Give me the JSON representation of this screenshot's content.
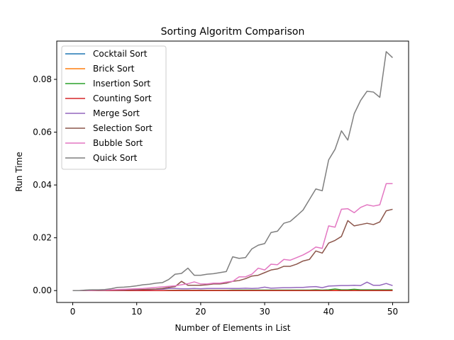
{
  "chart_data": {
    "type": "line",
    "title": "Sorting Algoritm Comparison",
    "xlabel": "Number of Elements in List",
    "ylabel": "Run Time",
    "xlim": [
      -2.5,
      52.5
    ],
    "ylim": [
      -0.0045,
      0.0945
    ],
    "xticks": [
      0,
      10,
      20,
      30,
      40,
      50
    ],
    "yticks": [
      0.0,
      0.02,
      0.04,
      0.06,
      0.08
    ],
    "ytick_labels": [
      "0.00",
      "0.02",
      "0.04",
      "0.06",
      "0.08"
    ],
    "grid": false,
    "legend_position": "top-left",
    "x": [
      0,
      1,
      2,
      3,
      4,
      5,
      6,
      7,
      8,
      9,
      10,
      11,
      12,
      13,
      14,
      15,
      16,
      17,
      18,
      19,
      20,
      21,
      22,
      23,
      24,
      25,
      26,
      27,
      28,
      29,
      30,
      31,
      32,
      33,
      34,
      35,
      36,
      37,
      38,
      39,
      40,
      41,
      42,
      43,
      44,
      45,
      46,
      47,
      48,
      49,
      50
    ],
    "series": [
      {
        "name": "Cocktail Sort",
        "color": "#1f77b4",
        "values": [
          0,
          0,
          0,
          0,
          0,
          0,
          0,
          0,
          0,
          0,
          0,
          0,
          0,
          0,
          0,
          0,
          0,
          0,
          0,
          0,
          0,
          0,
          0,
          0,
          0,
          0,
          0,
          0,
          0,
          0,
          0,
          0,
          0,
          0,
          0,
          0,
          0,
          0,
          0,
          0,
          0,
          0,
          0,
          0,
          0,
          0,
          0,
          0,
          0,
          0,
          0
        ]
      },
      {
        "name": "Brick Sort",
        "color": "#ff7f0e",
        "values": [
          0,
          0,
          0,
          0,
          0,
          0,
          0,
          0,
          0,
          0,
          0,
          0,
          0,
          0,
          0,
          0,
          0.0001,
          0.0001,
          0.0001,
          0.0001,
          0.0001,
          0.0001,
          0.0001,
          0.0001,
          0.0001,
          0.0001,
          0.0001,
          0.0001,
          0.0001,
          0.0001,
          0.0001,
          0.0001,
          0.0001,
          0.0001,
          0.0001,
          0.0001,
          0.0001,
          0.0001,
          0.0001,
          0.0001,
          0.0001,
          0.0001,
          0.0001,
          0.0001,
          0.0001,
          0.0001,
          0.0001,
          0.0001,
          0.0001,
          0.0002,
          0.0001
        ]
      },
      {
        "name": "Insertion Sort",
        "color": "#2ca02c",
        "values": [
          0,
          0,
          0,
          0,
          0,
          0,
          0,
          0,
          0,
          0,
          0,
          0,
          0,
          0,
          0,
          0.0001,
          0.0001,
          0.0001,
          0.0001,
          0.0001,
          0.0001,
          0.0001,
          0.0001,
          0.0001,
          0.0001,
          0.0002,
          0.0002,
          0.0002,
          0.0002,
          0.0002,
          0.0002,
          0.0002,
          0.0002,
          0.0002,
          0.0002,
          0.0002,
          0.0002,
          0.0002,
          0.0003,
          0.0002,
          0.0003,
          0.0006,
          0.0003,
          0.0003,
          0.0005,
          0.0003,
          0.0003,
          0.0003,
          0.0003,
          0.0003,
          0.0003
        ]
      },
      {
        "name": "Counting Sort",
        "color": "#d62728",
        "values": [
          0,
          0,
          0,
          0,
          0,
          0,
          0,
          0,
          0,
          0,
          0,
          0,
          0,
          0,
          0,
          0,
          0,
          0,
          0,
          0,
          0,
          0,
          0,
          0,
          0,
          0,
          0,
          0,
          0,
          0,
          0,
          0,
          0,
          0,
          0,
          0,
          0,
          0,
          0,
          0,
          0,
          0,
          0,
          0,
          0,
          0,
          0,
          0,
          0,
          0,
          0
        ]
      },
      {
        "name": "Merge Sort",
        "color": "#9467bd",
        "values": [
          0,
          0,
          0,
          0.0001,
          0.0001,
          0.0001,
          0.0002,
          0.0002,
          0.0002,
          0.0003,
          0.0003,
          0.0004,
          0.0004,
          0.0005,
          0.0005,
          0.0008,
          0.0008,
          0.0007,
          0.0007,
          0.0008,
          0.0007,
          0.0008,
          0.0008,
          0.0008,
          0.0008,
          0.0008,
          0.0008,
          0.0009,
          0.0008,
          0.0009,
          0.0013,
          0.0009,
          0.001,
          0.0011,
          0.0011,
          0.0012,
          0.0012,
          0.0014,
          0.0015,
          0.0011,
          0.0017,
          0.0018,
          0.0019,
          0.0019,
          0.002,
          0.0019,
          0.0032,
          0.002,
          0.002,
          0.0027,
          0.0019
        ]
      },
      {
        "name": "Selection Sort",
        "color": "#8c564b",
        "values": [
          0,
          0,
          0,
          0.0001,
          0.0001,
          0.0001,
          0.0002,
          0.0002,
          0.0003,
          0.0003,
          0.0004,
          0.0004,
          0.0005,
          0.0006,
          0.0008,
          0.0012,
          0.0015,
          0.0035,
          0.002,
          0.002,
          0.002,
          0.0022,
          0.0025,
          0.0025,
          0.0028,
          0.0035,
          0.0038,
          0.0045,
          0.0055,
          0.0058,
          0.0068,
          0.0078,
          0.0082,
          0.0092,
          0.0092,
          0.01,
          0.0112,
          0.0118,
          0.015,
          0.0142,
          0.018,
          0.019,
          0.0205,
          0.0265,
          0.0245,
          0.025,
          0.0255,
          0.025,
          0.026,
          0.0302,
          0.0308
        ]
      },
      {
        "name": "Bubble Sort",
        "color": "#e377c2",
        "values": [
          0,
          0,
          0.0001,
          0.0001,
          0.0002,
          0.0002,
          0.0003,
          0.0004,
          0.0005,
          0.0006,
          0.0007,
          0.0008,
          0.001,
          0.0012,
          0.0014,
          0.0016,
          0.0018,
          0.0022,
          0.0026,
          0.0033,
          0.0025,
          0.0025,
          0.0028,
          0.0028,
          0.0032,
          0.0035,
          0.0052,
          0.0052,
          0.0062,
          0.0085,
          0.0078,
          0.01,
          0.0098,
          0.0118,
          0.0115,
          0.0125,
          0.0135,
          0.0148,
          0.0165,
          0.016,
          0.0245,
          0.024,
          0.0308,
          0.031,
          0.0295,
          0.0315,
          0.0325,
          0.032,
          0.0325,
          0.0405,
          0.0405
        ]
      },
      {
        "name": "Quick Sort",
        "color": "#7f7f7f",
        "values": [
          0,
          0,
          0.0002,
          0.0003,
          0.0003,
          0.0004,
          0.0007,
          0.0012,
          0.0013,
          0.0015,
          0.0018,
          0.0022,
          0.0024,
          0.0028,
          0.003,
          0.0042,
          0.0062,
          0.0065,
          0.0085,
          0.0058,
          0.0058,
          0.0062,
          0.0064,
          0.0068,
          0.0072,
          0.0128,
          0.0122,
          0.0125,
          0.0158,
          0.0172,
          0.0178,
          0.022,
          0.0225,
          0.0255,
          0.0262,
          0.0283,
          0.0305,
          0.0345,
          0.0385,
          0.0378,
          0.0495,
          0.0535,
          0.0605,
          0.057,
          0.067,
          0.072,
          0.0755,
          0.0752,
          0.0732,
          0.0905,
          0.0882
        ]
      }
    ]
  }
}
